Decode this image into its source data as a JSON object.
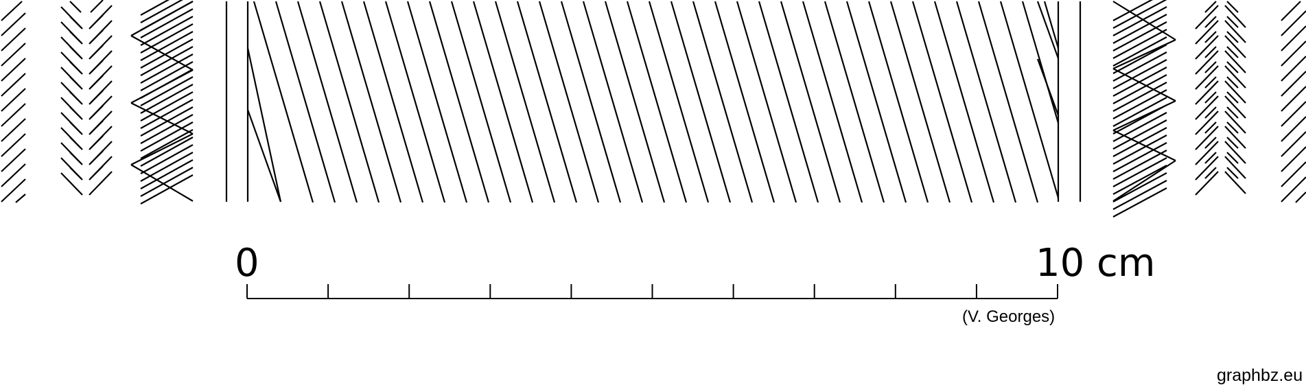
{
  "scale_bar": {
    "start_label": "0",
    "end_label": "10 cm",
    "divisions": 10
  },
  "credit": "(V. Georges)",
  "watermark": "graphbz.eu",
  "colors": {
    "ink": "#000000",
    "background": "#ffffff"
  }
}
